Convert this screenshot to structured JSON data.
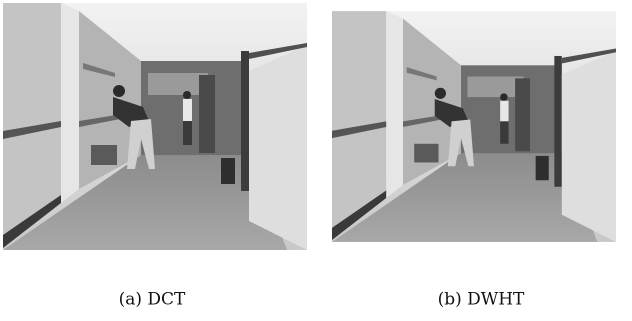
{
  "figure": {
    "subfigures": [
      {
        "caption": "(a) DCT"
      },
      {
        "caption": "(b) DWHT"
      }
    ]
  }
}
